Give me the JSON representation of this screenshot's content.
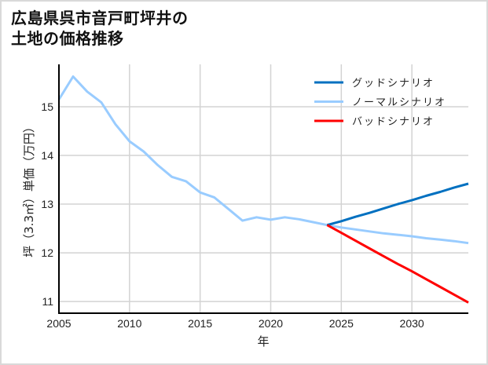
{
  "title": "広島県呉市音戸町坪井の\n土地の価格推移",
  "chart_data": {
    "type": "line",
    "title": "広島県呉市音戸町坪井の土地の価格推移",
    "xlabel": "年",
    "ylabel": "坪（3.3㎡）単価（万円）",
    "xlim": [
      2005,
      2034
    ],
    "ylim": [
      10.76,
      15.87
    ],
    "xticks": [
      2005,
      2010,
      2015,
      2020,
      2025,
      2030
    ],
    "yticks": [
      11,
      12,
      13,
      14,
      15
    ],
    "grid": true,
    "legend_position": "upper right",
    "series": [
      {
        "name": "グッドシナリオ",
        "color": "#0070c0",
        "x": [
          2024,
          2025,
          2026,
          2027,
          2028,
          2029,
          2030,
          2031,
          2032,
          2033,
          2034
        ],
        "values": [
          12.57,
          12.65,
          12.74,
          12.82,
          12.91,
          13.0,
          13.08,
          13.17,
          13.25,
          13.34,
          13.42
        ]
      },
      {
        "name": "ノーマルシナリオ",
        "color": "#99ccff",
        "x": [
          2005,
          2006,
          2007,
          2008,
          2009,
          2010,
          2011,
          2012,
          2013,
          2014,
          2015,
          2016,
          2017,
          2018,
          2019,
          2020,
          2021,
          2022,
          2023,
          2024,
          2025,
          2026,
          2027,
          2028,
          2029,
          2030,
          2031,
          2032,
          2033,
          2034
        ],
        "values": [
          15.15,
          15.62,
          15.31,
          15.09,
          14.64,
          14.29,
          14.08,
          13.8,
          13.56,
          13.47,
          13.24,
          13.14,
          12.9,
          12.66,
          12.73,
          12.68,
          12.73,
          12.69,
          12.63,
          12.57,
          12.52,
          12.48,
          12.44,
          12.4,
          12.37,
          12.34,
          12.3,
          12.27,
          12.24,
          12.2
        ]
      },
      {
        "name": "バッドシナリオ",
        "color": "#ff0000",
        "x": [
          2024,
          2025,
          2026,
          2027,
          2028,
          2029,
          2030,
          2031,
          2032,
          2033,
          2034
        ],
        "values": [
          12.57,
          12.41,
          12.25,
          12.09,
          11.93,
          11.77,
          11.62,
          11.46,
          11.3,
          11.14,
          10.98
        ]
      }
    ]
  }
}
